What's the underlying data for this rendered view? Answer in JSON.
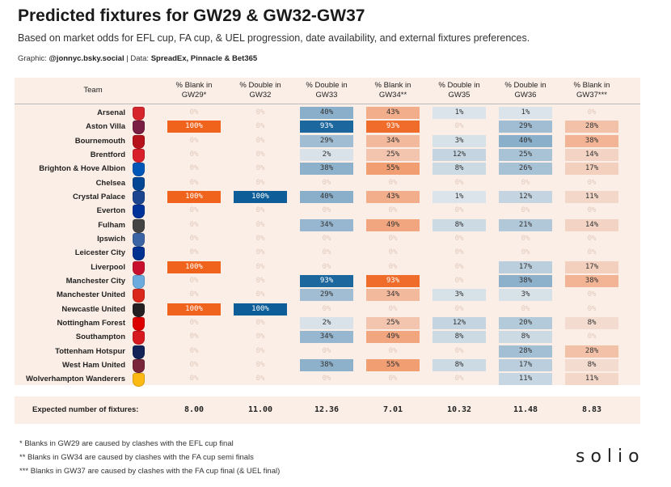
{
  "header": {
    "title": "Predicted fixtures for GW29 & GW32-GW37",
    "subtitle": "Based on market odds for EFL cup, FA cup, & UEL progression, date availability, and external fixtures preferences.",
    "graphic_label": "Graphic:",
    "graphic_handle": "@jonnyc.bsky.social",
    "separator": "|",
    "data_label": "Data:",
    "data_sources": "SpreadEx, Pinnacle & Bet365"
  },
  "columns": [
    {
      "label": "Team"
    },
    {
      "label": "% Blank in GW29*",
      "type": "blank"
    },
    {
      "label": "% Double in GW32",
      "type": "double"
    },
    {
      "label": "% Double in GW33",
      "type": "double"
    },
    {
      "label": "% Blank in GW34**",
      "type": "blank"
    },
    {
      "label": "% Double in GW35",
      "type": "double"
    },
    {
      "label": "% Double in GW36",
      "type": "double"
    },
    {
      "label": "% Blank in GW37***",
      "type": "blank"
    }
  ],
  "colors": {
    "blank": "#f0631c",
    "double": "#0d5d98",
    "panel": "#fbeee6",
    "zero_text": "#e2c9bc"
  },
  "rows": [
    {
      "team": "Arsenal",
      "crest": "arsenal-crest-icon",
      "crest_color": "#d6262c",
      "values": [
        "0%",
        "0%",
        "40%",
        "43%",
        "1%",
        "1%",
        "0%"
      ],
      "numbers": [
        0,
        0,
        40,
        43,
        1,
        1,
        0
      ]
    },
    {
      "team": "Aston Villa",
      "crest": "aston-villa-crest-icon",
      "crest_color": "#7a1e44",
      "values": [
        "100%",
        "0%",
        "93%",
        "93%",
        "0%",
        "29%",
        "28%"
      ],
      "numbers": [
        100,
        0,
        93,
        93,
        0,
        29,
        28
      ]
    },
    {
      "team": "Bournemouth",
      "crest": "bournemouth-crest-icon",
      "crest_color": "#b5121b",
      "values": [
        "0%",
        "0%",
        "29%",
        "34%",
        "3%",
        "40%",
        "38%"
      ],
      "numbers": [
        0,
        0,
        29,
        34,
        3,
        40,
        38
      ]
    },
    {
      "team": "Brentford",
      "crest": "brentford-crest-icon",
      "crest_color": "#d81f2a",
      "values": [
        "0%",
        "0%",
        "2%",
        "25%",
        "12%",
        "25%",
        "14%"
      ],
      "numbers": [
        0,
        0,
        2,
        25,
        12,
        25,
        14
      ]
    },
    {
      "team": "Brighton & Hove Albion",
      "crest": "brighton-crest-icon",
      "crest_color": "#0057b8",
      "values": [
        "0%",
        "0%",
        "38%",
        "55%",
        "8%",
        "26%",
        "17%"
      ],
      "numbers": [
        0,
        0,
        38,
        55,
        8,
        26,
        17
      ]
    },
    {
      "team": "Chelsea",
      "crest": "chelsea-crest-icon",
      "crest_color": "#034694",
      "values": [
        "0%",
        "0%",
        "0%",
        "0%",
        "0%",
        "0%",
        "0%"
      ],
      "numbers": [
        0,
        0,
        0,
        0,
        0,
        0,
        0
      ]
    },
    {
      "team": "Crystal Palace",
      "crest": "crystal-palace-crest-icon",
      "crest_color": "#1b458f",
      "values": [
        "100%",
        "100%",
        "40%",
        "43%",
        "1%",
        "12%",
        "11%"
      ],
      "numbers": [
        100,
        100,
        40,
        43,
        1,
        12,
        11
      ]
    },
    {
      "team": "Everton",
      "crest": "everton-crest-icon",
      "crest_color": "#003399",
      "values": [
        "0%",
        "0%",
        "0%",
        "0%",
        "0%",
        "0%",
        "0%"
      ],
      "numbers": [
        0,
        0,
        0,
        0,
        0,
        0,
        0
      ]
    },
    {
      "team": "Fulham",
      "crest": "fulham-crest-icon",
      "crest_color": "#444444",
      "values": [
        "0%",
        "0%",
        "34%",
        "49%",
        "8%",
        "21%",
        "14%"
      ],
      "numbers": [
        0,
        0,
        34,
        49,
        8,
        21,
        14
      ]
    },
    {
      "team": "Ipswich",
      "crest": "ipswich-crest-icon",
      "crest_color": "#3a64a3",
      "values": [
        "0%",
        "0%",
        "0%",
        "0%",
        "0%",
        "0%",
        "0%"
      ],
      "numbers": [
        0,
        0,
        0,
        0,
        0,
        0,
        0
      ]
    },
    {
      "team": "Leicester City",
      "crest": "leicester-crest-icon",
      "crest_color": "#003090",
      "values": [
        "0%",
        "0%",
        "0%",
        "0%",
        "0%",
        "0%",
        "0%"
      ],
      "numbers": [
        0,
        0,
        0,
        0,
        0,
        0,
        0
      ]
    },
    {
      "team": "Liverpool",
      "crest": "liverpool-crest-icon",
      "crest_color": "#c8102e",
      "values": [
        "100%",
        "0%",
        "0%",
        "0%",
        "0%",
        "17%",
        "17%"
      ],
      "numbers": [
        100,
        0,
        0,
        0,
        0,
        17,
        17
      ]
    },
    {
      "team": "Manchester City",
      "crest": "manchester-city-crest-icon",
      "crest_color": "#6cabdd",
      "values": [
        "0%",
        "0%",
        "93%",
        "93%",
        "0%",
        "38%",
        "38%"
      ],
      "numbers": [
        0,
        0,
        93,
        93,
        0,
        38,
        38
      ]
    },
    {
      "team": "Manchester United",
      "crest": "manchester-united-crest-icon",
      "crest_color": "#da291c",
      "values": [
        "0%",
        "0%",
        "29%",
        "34%",
        "3%",
        "3%",
        "0%"
      ],
      "numbers": [
        0,
        0,
        29,
        34,
        3,
        3,
        0
      ]
    },
    {
      "team": "Newcastle United",
      "crest": "newcastle-crest-icon",
      "crest_color": "#241f20",
      "values": [
        "100%",
        "100%",
        "0%",
        "0%",
        "0%",
        "0%",
        "0%"
      ],
      "numbers": [
        100,
        100,
        0,
        0,
        0,
        0,
        0
      ]
    },
    {
      "team": "Nottingham Forest",
      "crest": "nottingham-forest-crest-icon",
      "crest_color": "#dd0000",
      "values": [
        "0%",
        "0%",
        "2%",
        "25%",
        "12%",
        "20%",
        "8%"
      ],
      "numbers": [
        0,
        0,
        2,
        25,
        12,
        20,
        8
      ]
    },
    {
      "team": "Southampton",
      "crest": "southampton-crest-icon",
      "crest_color": "#d71920",
      "values": [
        "0%",
        "0%",
        "34%",
        "49%",
        "8%",
        "8%",
        "0%"
      ],
      "numbers": [
        0,
        0,
        34,
        49,
        8,
        8,
        0
      ]
    },
    {
      "team": "Tottenham Hotspur",
      "crest": "tottenham-crest-icon",
      "crest_color": "#132257",
      "values": [
        "0%",
        "0%",
        "0%",
        "0%",
        "0%",
        "28%",
        "28%"
      ],
      "numbers": [
        0,
        0,
        0,
        0,
        0,
        28,
        28
      ]
    },
    {
      "team": "West Ham United",
      "crest": "west-ham-crest-icon",
      "crest_color": "#7a263a",
      "values": [
        "0%",
        "0%",
        "38%",
        "55%",
        "8%",
        "17%",
        "8%"
      ],
      "numbers": [
        0,
        0,
        38,
        55,
        8,
        17,
        8
      ]
    },
    {
      "team": "Wolverhampton Wanderers",
      "crest": "wolves-crest-icon",
      "crest_color": "#fdb913",
      "values": [
        "0%",
        "0%",
        "0%",
        "0%",
        "0%",
        "11%",
        "11%"
      ],
      "numbers": [
        0,
        0,
        0,
        0,
        0,
        11,
        11
      ]
    }
  ],
  "expected": {
    "label": "Expected number of fixtures:",
    "values": [
      "8.00",
      "11.00",
      "12.36",
      "7.01",
      "10.32",
      "11.48",
      "8.83"
    ]
  },
  "footnotes": [
    "*  Blanks in GW29 are caused by clashes with the EFL cup final",
    "**  Blanks in GW34 are caused by clashes with the FA cup semi finals",
    "***  Blanks in GW37 are caused by clashes with the FA cup final (& UEL final)"
  ],
  "logo": "solio"
}
